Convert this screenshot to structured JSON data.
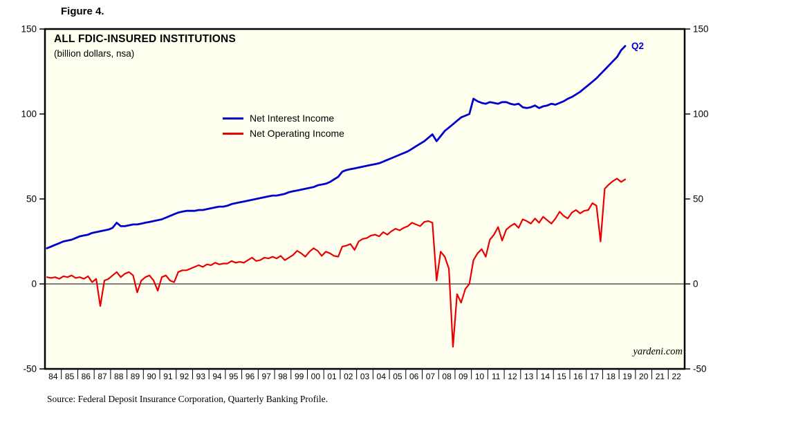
{
  "figure": {
    "label": "Figure 4."
  },
  "source": {
    "text": "Source: Federal Deposit Insurance Corporation, Quarterly Banking Profile."
  },
  "chart_data": {
    "type": "line",
    "title": "ALL FDIC-INSURED INSTITUTIONS",
    "subtitle": "(billion dollars, nsa)",
    "end_label": "Q2",
    "watermark": "yardeni.com",
    "ylim": [
      -50,
      150
    ],
    "yticks": [
      -50,
      0,
      50,
      100,
      150
    ],
    "grid": "off",
    "zero_line": true,
    "legend_position": "inside-top-center-left",
    "frequency": "quarterly",
    "x_start_year": 1984,
    "x_labels": [
      "84",
      "85",
      "86",
      "87",
      "88",
      "89",
      "90",
      "91",
      "92",
      "93",
      "94",
      "95",
      "96",
      "97",
      "98",
      "99",
      "00",
      "01",
      "02",
      "03",
      "04",
      "05",
      "06",
      "07",
      "08",
      "09",
      "10",
      "11",
      "12",
      "13",
      "14",
      "15",
      "16",
      "17",
      "18",
      "19",
      "20",
      "21",
      "22"
    ],
    "plot_bg_color": "#FFFFEF",
    "series": [
      {
        "name": "Net Interest Income",
        "color": "#0000CC",
        "line_width": 2.8,
        "values": [
          21,
          22,
          23,
          24,
          25,
          25.5,
          26,
          27,
          28,
          28.5,
          29,
          30,
          30.5,
          31,
          31.5,
          32,
          33,
          36,
          34,
          34,
          34.5,
          35,
          35,
          35.5,
          36,
          36.5,
          37,
          37.5,
          38,
          39,
          40,
          41,
          42,
          42.5,
          43,
          43,
          43,
          43.5,
          43.5,
          44,
          44.5,
          45,
          45.5,
          45.5,
          46,
          47,
          47.5,
          48,
          48.5,
          49,
          49.5,
          50,
          50.5,
          51,
          51.5,
          52,
          52,
          52.5,
          53,
          54,
          54.5,
          55,
          55.5,
          56,
          56.5,
          57,
          58,
          58.5,
          59,
          60,
          61.5,
          63,
          66,
          67,
          67.5,
          68,
          68.5,
          69,
          69.5,
          70,
          70.5,
          71,
          72,
          73,
          74,
          75,
          76,
          77,
          78,
          79.5,
          81,
          82.5,
          84,
          86,
          88,
          84,
          87,
          90,
          92,
          94,
          96,
          98,
          99,
          100,
          109,
          107.5,
          106.5,
          106,
          107,
          106.5,
          106,
          107,
          107,
          106,
          105.5,
          106,
          104,
          103.5,
          104,
          105,
          103.5,
          104.5,
          105,
          106,
          105.5,
          106.5,
          107.5,
          109,
          110,
          111.5,
          113,
          115,
          117,
          119,
          121,
          123.5,
          126,
          128.5,
          131,
          133.5,
          137.5,
          140
        ]
      },
      {
        "name": "Net Operating Income",
        "color": "#E80000",
        "line_width": 2.2,
        "values": [
          4,
          3.5,
          4,
          3,
          4.5,
          4,
          5,
          3.5,
          4,
          3,
          4.5,
          1,
          3,
          -13,
          2,
          3,
          5,
          7,
          4,
          6,
          7,
          5,
          -5,
          2,
          4,
          5,
          2,
          -4,
          4,
          5,
          2,
          1,
          7,
          8,
          8,
          9,
          10,
          11,
          10,
          11.5,
          11,
          12.5,
          11.5,
          12,
          12,
          13.5,
          12.5,
          13,
          12.5,
          14,
          15.5,
          13.5,
          14,
          15.5,
          15,
          16,
          15,
          16.5,
          14,
          15.5,
          17,
          19.5,
          18,
          16,
          19,
          21,
          19.5,
          16.5,
          19,
          18,
          16.5,
          16,
          22,
          22.5,
          23.5,
          20,
          25,
          26.5,
          27,
          28.5,
          29,
          28,
          30.5,
          29,
          31,
          32.5,
          31.5,
          33,
          34,
          36,
          35,
          34,
          36.5,
          37,
          36,
          2,
          19,
          16,
          9,
          -37,
          -6,
          -11,
          -3,
          0,
          14,
          18,
          20.5,
          16,
          26,
          29,
          33.5,
          25.5,
          32,
          34,
          35.5,
          33,
          38,
          37,
          35.5,
          38.5,
          36,
          39.5,
          37.5,
          35.5,
          38.5,
          42.5,
          40,
          38.5,
          42,
          43.5,
          41.5,
          43,
          43.5,
          47.5,
          46,
          25,
          56,
          58.5,
          60.5,
          62,
          60,
          61.5
        ]
      }
    ]
  }
}
